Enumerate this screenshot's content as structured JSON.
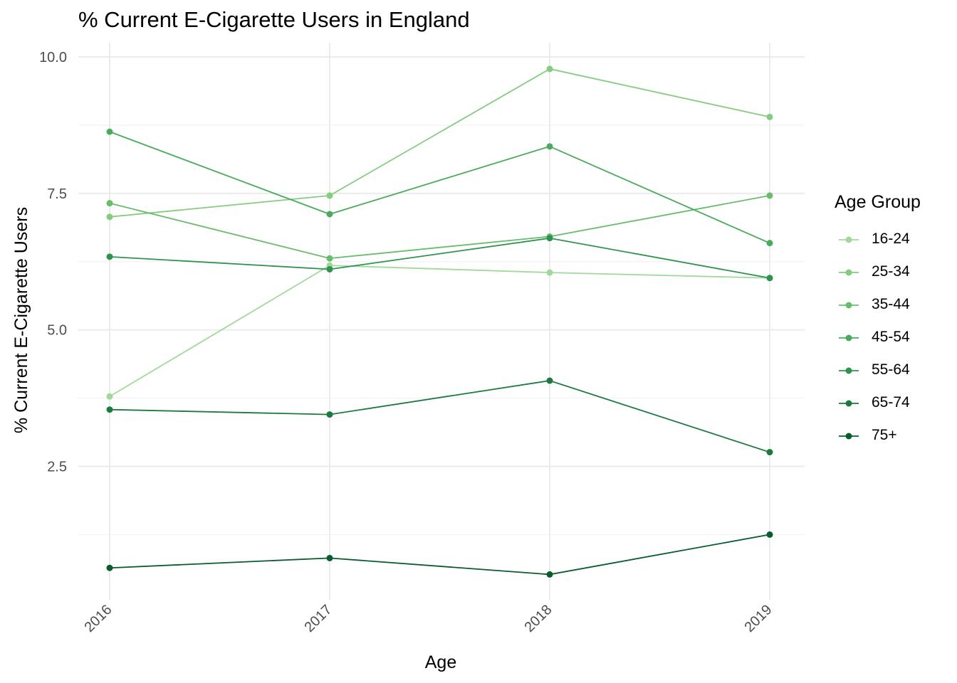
{
  "chart_data": {
    "type": "line",
    "title": "% Current E-Cigarette Users in England",
    "xlabel": "Age",
    "ylabel": "% Current E-Cigarette Users",
    "x": [
      "2016",
      "2017",
      "2018",
      "2019"
    ],
    "y_ticks": [
      "2.5",
      "5.0",
      "7.5",
      "10.0"
    ],
    "ylim": [
      0.0,
      10.2
    ],
    "grid": true,
    "legend_title": "Age Group",
    "legend_position": "right",
    "series": [
      {
        "name": "16-24",
        "color": "#a1d99b",
        "values": [
          3.78,
          6.18,
          6.05,
          5.95
        ]
      },
      {
        "name": "25-34",
        "color": "#84cc7f",
        "values": [
          7.07,
          7.46,
          9.78,
          8.9
        ]
      },
      {
        "name": "35-44",
        "color": "#68bd6d",
        "values": [
          7.32,
          6.31,
          6.71,
          7.46
        ]
      },
      {
        "name": "45-54",
        "color": "#4aab5f",
        "values": [
          8.63,
          7.12,
          8.36,
          6.59
        ]
      },
      {
        "name": "55-64",
        "color": "#2f9350",
        "values": [
          6.34,
          6.11,
          6.68,
          5.95
        ]
      },
      {
        "name": "65-74",
        "color": "#1c7a40",
        "values": [
          3.54,
          3.45,
          4.07,
          2.76
        ]
      },
      {
        "name": "75+",
        "color": "#0a5c2e",
        "values": [
          0.64,
          0.82,
          0.52,
          1.25
        ]
      }
    ]
  }
}
